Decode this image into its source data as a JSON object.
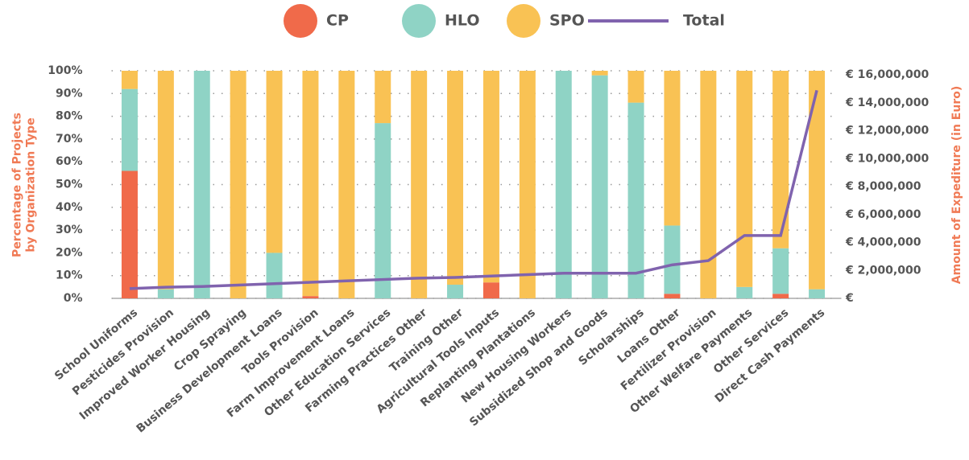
{
  "chart_data": {
    "type": "bar",
    "stacked": true,
    "categories": [
      "School Uniforms",
      "Pesticides Provision",
      "Improved Worker Housing",
      "Crop Spraying",
      "Business Development Loans",
      "Tools Provision",
      "Farm Improvement Loans",
      "Other Education Services",
      "Farming Practices Other",
      "Training Other",
      "Agricultural Tools Inputs",
      "Replanting Plantations",
      "New Housing Workers",
      "Subsidized Shop and Goods",
      "Scholarships",
      "Loans Other",
      "Fertilizer Provision",
      "Other Welfare Payments",
      "Other Services",
      "Direct Cash Payments"
    ],
    "series": [
      {
        "name": "CP",
        "color": "#f06a4a",
        "values": [
          56,
          0,
          0,
          0,
          0,
          1,
          0,
          0,
          0,
          0,
          7,
          0,
          0,
          0,
          0,
          2,
          0,
          0,
          2,
          0
        ]
      },
      {
        "name": "HLO",
        "color": "#8fd3c5",
        "values": [
          36,
          4,
          100,
          0,
          20,
          0,
          0,
          77,
          0,
          6,
          0,
          0,
          100,
          98,
          86,
          30,
          0,
          5,
          20,
          4
        ]
      },
      {
        "name": "SPO",
        "color": "#f9c254",
        "values": [
          8,
          96,
          0,
          100,
          80,
          99,
          100,
          23,
          100,
          94,
          93,
          100,
          0,
          2,
          14,
          68,
          100,
          95,
          78,
          96
        ]
      },
      {
        "name": "Total",
        "color": "#8063ae",
        "type": "line",
        "axis": "y2",
        "values": [
          700000,
          800000,
          850000,
          950000,
          1050000,
          1150000,
          1250000,
          1350000,
          1450000,
          1500000,
          1600000,
          1700000,
          1800000,
          1800000,
          1800000,
          2400000,
          2700000,
          4500000,
          4500000,
          14900000
        ]
      }
    ],
    "ylabel": "Percentage of Projects by Organization Type",
    "y2label": "Amount of Expediture (in Euro)",
    "ylim": [
      0,
      100
    ],
    "yticks": [
      {
        "value": 0,
        "label": "0%"
      },
      {
        "value": 10,
        "label": "10%"
      },
      {
        "value": 20,
        "label": "20%"
      },
      {
        "value": 30,
        "label": "30%"
      },
      {
        "value": 40,
        "label": "40%"
      },
      {
        "value": 50,
        "label": "50%"
      },
      {
        "value": 60,
        "label": "60%"
      },
      {
        "value": 70,
        "label": "70%"
      },
      {
        "value": 80,
        "label": "80%"
      },
      {
        "value": 90,
        "label": "90%"
      },
      {
        "value": 100,
        "label": "100%"
      }
    ],
    "y2lim": [
      0,
      16300000
    ],
    "y2ticks": [
      {
        "value": 0,
        "label": "€"
      },
      {
        "value": 2000000,
        "label": "€ 2,000,000"
      },
      {
        "value": 4000000,
        "label": "€ 4,000,000"
      },
      {
        "value": 6000000,
        "label": "€ 6,000,000"
      },
      {
        "value": 8000000,
        "label": "€ 8,000,000"
      },
      {
        "value": 10000000,
        "label": "€ 10,000,000"
      },
      {
        "value": 12000000,
        "label": "€ 12,000,000"
      },
      {
        "value": 14000000,
        "label": "€ 14,000,000"
      },
      {
        "value": 16000000,
        "label": "€ 16,000,000"
      }
    ],
    "grid": true,
    "legend": "top"
  }
}
